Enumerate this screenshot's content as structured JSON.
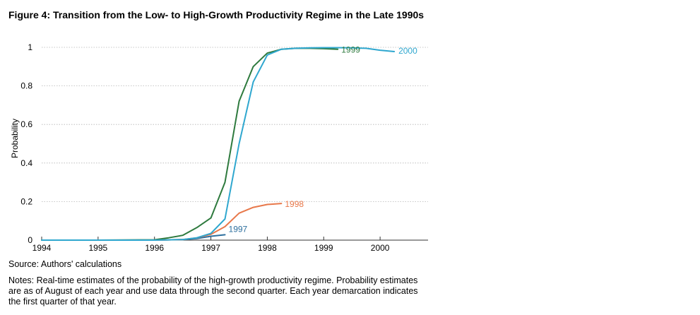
{
  "title": "Figure 4: Transition from the Low- to High-Growth Productivity Regime in the Late 1990s",
  "source": "Source: Authors' calculations",
  "notes": "Notes: Real-time estimates of the probability of the high-growth productivity regime. Probability estimates are as of August of each year and use data through the second quarter. Each year demarcation indicates the first quarter of that year.",
  "chart_data": {
    "type": "line",
    "title": "Figure 4: Transition from the Low- to High-Growth Productivity Regime in the Late 1990s",
    "xlabel": "",
    "ylabel": "Probability",
    "xlim": [
      1994,
      2000.85
    ],
    "ylim": [
      0,
      1
    ],
    "x_ticks": [
      1994,
      1995,
      1996,
      1997,
      1998,
      1999,
      2000
    ],
    "x_tick_labels": [
      "1994",
      "1995",
      "1996",
      "1997",
      "1998",
      "1999",
      "2000"
    ],
    "y_ticks": [
      0,
      0.2,
      0.4,
      0.6,
      0.8,
      1
    ],
    "y_tick_labels": [
      "0",
      "0.2",
      "0.4",
      "0.6",
      "0.8",
      "1"
    ],
    "grid": true,
    "series": [
      {
        "name": "1997",
        "color": "#2e6f9e",
        "x": [
          1994,
          1995,
          1996,
          1996.5,
          1996.75,
          1997,
          1997.25
        ],
        "y": [
          0,
          0,
          0,
          0.003,
          0.008,
          0.02,
          0.028
        ]
      },
      {
        "name": "1998",
        "color": "#e8784a",
        "x": [
          1994,
          1995,
          1996,
          1996.5,
          1996.75,
          1997,
          1997.25,
          1997.5,
          1997.75,
          1998,
          1998.25
        ],
        "y": [
          0,
          0,
          0,
          0.003,
          0.012,
          0.03,
          0.07,
          0.14,
          0.17,
          0.185,
          0.19
        ]
      },
      {
        "name": "1999",
        "color": "#2e7a3e",
        "x": [
          1994,
          1995,
          1996,
          1996.25,
          1996.5,
          1996.75,
          1997,
          1997.25,
          1997.5,
          1997.75,
          1998,
          1998.25,
          1998.5,
          1998.75,
          1999,
          1999.25
        ],
        "y": [
          0,
          0,
          0.002,
          0.012,
          0.025,
          0.065,
          0.115,
          0.3,
          0.72,
          0.9,
          0.97,
          0.99,
          0.995,
          0.995,
          0.993,
          0.99
        ]
      },
      {
        "name": "2000",
        "color": "#2fa7cf",
        "x": [
          1994,
          1995,
          1996,
          1996.5,
          1996.75,
          1997,
          1997.25,
          1997.5,
          1997.75,
          1998,
          1998.25,
          1998.5,
          1998.75,
          1999,
          1999.25,
          1999.5,
          1999.75,
          2000,
          2000.25
        ],
        "y": [
          0,
          0,
          0,
          0.003,
          0.012,
          0.035,
          0.11,
          0.5,
          0.82,
          0.96,
          0.99,
          0.995,
          0.997,
          0.998,
          0.998,
          0.997,
          0.995,
          0.985,
          0.978
        ]
      }
    ]
  }
}
